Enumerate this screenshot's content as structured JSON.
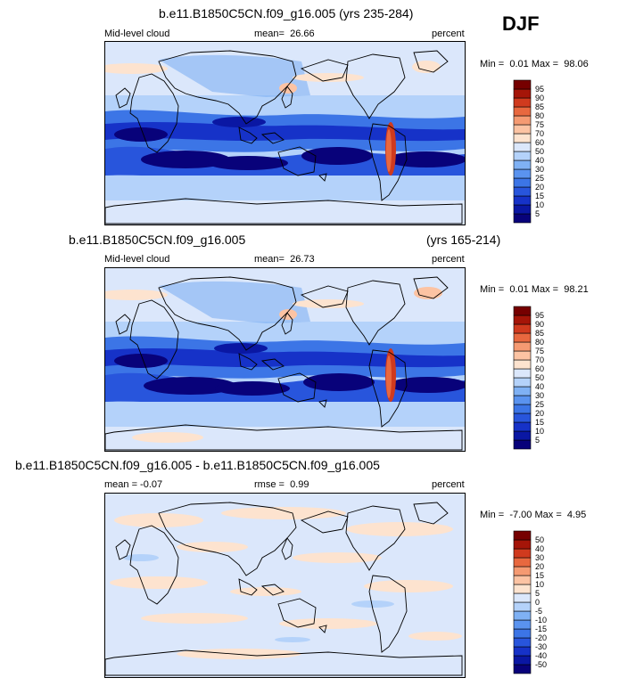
{
  "season": "DJF",
  "chart_data": [
    {
      "type": "heatmap",
      "title": "b.e11.B1850C5CN.f09_g16.005 (yrs 235-284)",
      "title_left": "",
      "title_right": "",
      "variable": "Mid-level cloud",
      "stat_left": "",
      "mean_label": "mean=",
      "mean_value": "26.66",
      "units": "percent",
      "min_label": "Min =",
      "min_value": "0.01",
      "max_label": "Max =",
      "max_value": "98.06",
      "colorbar_levels": [
        "5",
        "10",
        "15",
        "20",
        "25",
        "30",
        "40",
        "50",
        "60",
        "70",
        "75",
        "80",
        "85",
        "90",
        "95"
      ],
      "colorbar_colors": [
        "#08027a",
        "#0a17a3",
        "#1632c8",
        "#2855dc",
        "#3c75e6",
        "#5a93ef",
        "#7fb1f4",
        "#b4d2fa",
        "#dbe7fb",
        "#fde3cf",
        "#fcc3a3",
        "#f59a72",
        "#e8683f",
        "#d03a1e",
        "#a51508",
        "#760000"
      ]
    },
    {
      "type": "heatmap",
      "title": "",
      "title_left": "b.e11.B1850C5CN.f09_g16.005",
      "title_right": "(yrs 165-214)",
      "variable": "Mid-level cloud",
      "stat_left": "",
      "mean_label": "mean=",
      "mean_value": "26.73",
      "units": "percent",
      "min_label": "Min =",
      "min_value": "0.01",
      "max_label": "Max =",
      "max_value": "98.21",
      "colorbar_levels": [
        "5",
        "10",
        "15",
        "20",
        "25",
        "30",
        "40",
        "50",
        "60",
        "70",
        "75",
        "80",
        "85",
        "90",
        "95"
      ],
      "colorbar_colors": [
        "#08027a",
        "#0a17a3",
        "#1632c8",
        "#2855dc",
        "#3c75e6",
        "#5a93ef",
        "#7fb1f4",
        "#b4d2fa",
        "#dbe7fb",
        "#fde3cf",
        "#fcc3a3",
        "#f59a72",
        "#e8683f",
        "#d03a1e",
        "#a51508",
        "#760000"
      ]
    },
    {
      "type": "heatmap",
      "title": "",
      "title_left": "b.e11.B1850C5CN.f09_g16.005 - b.e11.B1850C5CN.f09_g16.005",
      "title_right": "",
      "variable": "",
      "stat_left": "mean =  -0.07",
      "mean_label": "rmse =",
      "mean_value": "0.99",
      "units": "percent",
      "min_label": "Min =",
      "min_value": "-7.00",
      "max_label": "Max =",
      "max_value": "4.95",
      "colorbar_levels": [
        "-50",
        "-40",
        "-30",
        "-20",
        "-15",
        "-10",
        "-5",
        "0",
        "5",
        "10",
        "15",
        "20",
        "30",
        "40",
        "50"
      ],
      "colorbar_colors": [
        "#08027a",
        "#0a17a3",
        "#1632c8",
        "#2855dc",
        "#3c75e6",
        "#5a93ef",
        "#7fb1f4",
        "#b4d2fa",
        "#dbe7fb",
        "#fde3cf",
        "#fcc3a3",
        "#f59a72",
        "#e8683f",
        "#d03a1e",
        "#a51508",
        "#760000"
      ]
    }
  ]
}
